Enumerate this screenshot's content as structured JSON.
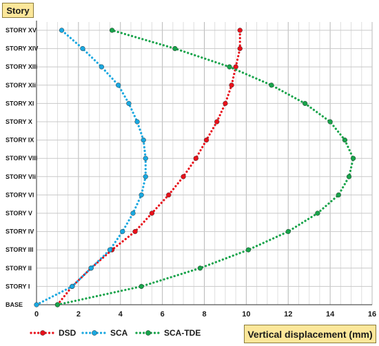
{
  "chart_data": {
    "type": "line",
    "ylabel": "Story",
    "xlabel": "Vertical displacement (mm)",
    "xlim": [
      0,
      16
    ],
    "x_ticks": [
      "0",
      "2",
      "4",
      "6",
      "8",
      "10",
      "12",
      "14",
      "16"
    ],
    "y_ticks": [
      "BASE",
      "STORY I",
      "STORY II",
      "STORY III",
      "STORY IV",
      "STORY V",
      "STORY VI",
      "STORY VIi",
      "STORY VIII",
      "STORY IX",
      "STORY X",
      "STORY XI",
      "STORY XIi",
      "STORY XIIi",
      "STORY XIV",
      "STORY XV"
    ],
    "grid": true,
    "legend_position": "bottom-left",
    "series": [
      {
        "name": "DSD",
        "color": "#e8101a",
        "values": [
          1.0,
          1.7,
          2.6,
          3.6,
          4.7,
          5.5,
          6.3,
          7.0,
          7.6,
          8.1,
          8.6,
          9.0,
          9.3,
          9.5,
          9.7,
          9.7
        ]
      },
      {
        "name": "SCA",
        "color": "#1aa8e0",
        "values": [
          0.0,
          1.7,
          2.6,
          3.5,
          4.1,
          4.6,
          5.0,
          5.2,
          5.2,
          5.1,
          4.8,
          4.4,
          3.9,
          3.1,
          2.2,
          1.2
        ]
      },
      {
        "name": "SCA-TDE",
        "color": "#17a34a",
        "values": [
          1.0,
          5.0,
          7.8,
          10.1,
          12.0,
          13.4,
          14.4,
          14.9,
          15.1,
          14.7,
          14.0,
          12.8,
          11.2,
          9.2,
          6.6,
          3.6
        ]
      }
    ]
  }
}
